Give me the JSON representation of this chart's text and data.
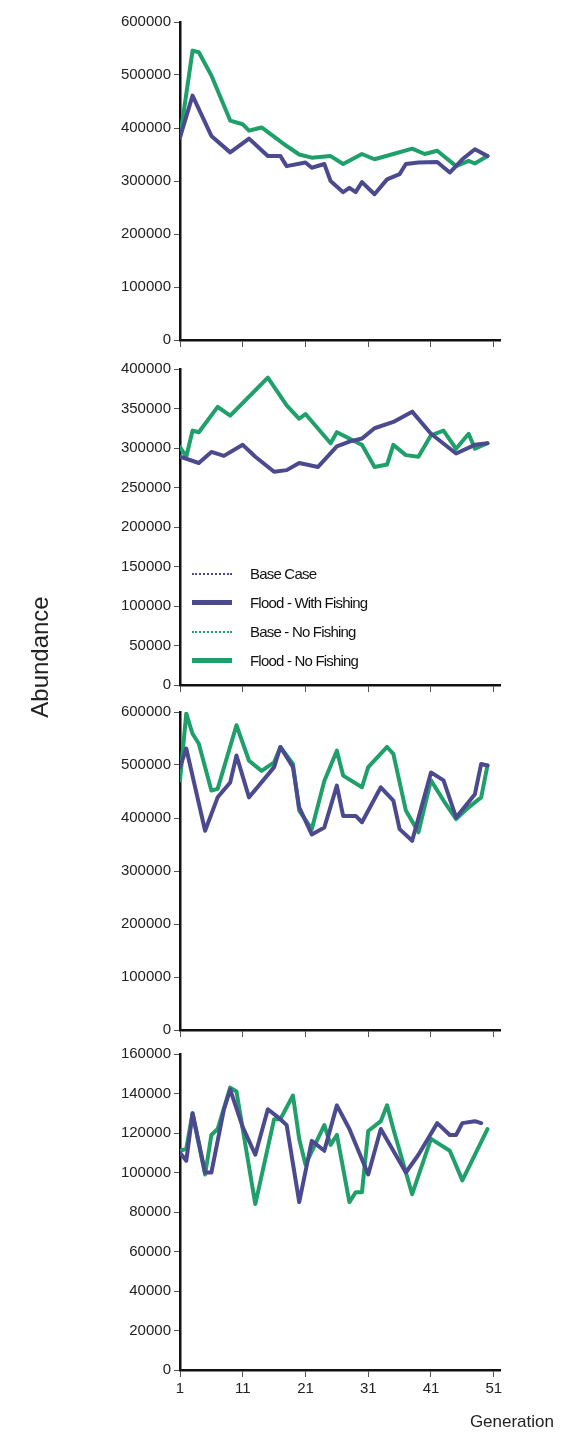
{
  "chart_data": [
    {
      "type": "line",
      "xlim": [
        1,
        52
      ],
      "xticks": [
        1,
        11,
        21,
        31,
        41,
        51
      ],
      "ylim": [
        0,
        600000
      ],
      "yticks": [
        0,
        100000,
        200000,
        300000,
        400000,
        500000,
        600000
      ],
      "tick_labels": "y",
      "marker": "none",
      "grid": false,
      "legend": false,
      "series": [
        {
          "color": "#4b4a8e",
          "x": [
            1,
            3,
            6,
            9,
            12,
            15,
            17,
            18,
            21,
            22,
            24,
            25,
            27,
            28,
            29,
            30,
            32,
            34,
            36,
            37,
            39,
            42,
            44,
            46,
            48,
            50
          ],
          "values": [
            382000,
            461000,
            385000,
            354000,
            380000,
            347000,
            347000,
            328000,
            335000,
            325000,
            332000,
            300000,
            279000,
            287000,
            279000,
            298000,
            275000,
            303000,
            313000,
            332000,
            335000,
            336000,
            316000,
            341000,
            360000,
            347000
          ]
        },
        {
          "color": "#1fa06a",
          "x": [
            1,
            3,
            4,
            6,
            9,
            11,
            12,
            14,
            18,
            20,
            22,
            25,
            27,
            30,
            32,
            35,
            38,
            40,
            42,
            45,
            47,
            48,
            50
          ],
          "values": [
            382000,
            546000,
            543000,
            499000,
            414000,
            407000,
            395000,
            401000,
            366000,
            350000,
            344000,
            347000,
            332000,
            351000,
            341000,
            351000,
            361000,
            351000,
            357000,
            328000,
            338000,
            333000,
            347000
          ]
        }
      ]
    },
    {
      "type": "line",
      "ylabel": "Abundance",
      "xlim": [
        1,
        52
      ],
      "xticks": [
        1,
        11,
        21,
        31,
        41,
        51
      ],
      "ylim": [
        0,
        400000
      ],
      "yticks": [
        0,
        50000,
        100000,
        150000,
        200000,
        250000,
        300000,
        350000,
        400000
      ],
      "tick_labels": "y",
      "marker": "none",
      "grid": false,
      "legend": "bottom left",
      "series": [
        {
          "name": "Base Case",
          "color": "#4b4a8e",
          "line_style": "dotted"
        },
        {
          "name": "Flood - With Fishing",
          "color": "#4b4a8e",
          "line_style": "solid",
          "x": [
            1,
            4,
            6,
            8,
            11,
            13,
            16,
            18,
            20,
            23,
            26,
            28,
            30,
            32,
            35,
            38,
            41,
            45,
            48,
            50
          ],
          "values": [
            289000,
            281000,
            295000,
            290000,
            304000,
            289000,
            270000,
            272000,
            281000,
            276000,
            302000,
            308000,
            312000,
            325000,
            333000,
            346000,
            318000,
            293000,
            304000,
            306000
          ]
        },
        {
          "name": "Base - No Fishing",
          "color": "#1fa06a",
          "line_style": "dotted"
        },
        {
          "name": "Flood - No Fishing",
          "color": "#1fa06a",
          "line_style": "solid",
          "x": [
            1,
            2,
            3,
            4,
            7,
            9,
            15,
            18,
            20,
            21,
            25,
            26,
            30,
            32,
            34,
            35,
            37,
            39,
            41,
            43,
            45,
            47,
            48,
            50
          ],
          "values": [
            301000,
            289000,
            322000,
            320000,
            352000,
            341000,
            389000,
            354000,
            337000,
            343000,
            306000,
            320000,
            304000,
            276000,
            279000,
            304000,
            291000,
            289000,
            316000,
            322000,
            299000,
            318000,
            299000,
            306000
          ]
        }
      ]
    },
    {
      "type": "line",
      "xlim": [
        1,
        52
      ],
      "xticks": [
        1,
        11,
        21,
        31,
        41,
        51
      ],
      "ylim": [
        0,
        600000
      ],
      "yticks": [
        0,
        100000,
        200000,
        300000,
        400000,
        500000,
        600000
      ],
      "tick_labels": "y",
      "marker": "none",
      "grid": false,
      "legend": false,
      "series": [
        {
          "color": "#4b4a8e",
          "x": [
            1,
            2,
            5,
            7,
            9,
            10,
            12,
            16,
            17,
            19,
            20,
            22,
            24,
            26,
            27,
            29,
            30,
            33,
            35,
            36,
            38,
            41,
            43,
            45,
            48,
            49,
            50
          ],
          "values": [
            496000,
            531000,
            376000,
            439000,
            467000,
            518000,
            439000,
            496000,
            534000,
            496000,
            420000,
            369000,
            382000,
            461000,
            404000,
            404000,
            392000,
            458000,
            433000,
            379000,
            357000,
            486000,
            471000,
            401000,
            445000,
            502000,
            499000
          ]
        },
        {
          "color": "#1fa06a",
          "x": [
            1,
            2,
            3,
            4,
            6,
            7,
            10,
            12,
            14,
            16,
            17,
            19,
            20,
            22,
            24,
            26,
            27,
            30,
            31,
            34,
            35,
            37,
            39,
            41,
            43,
            45,
            47,
            49,
            50
          ],
          "values": [
            471000,
            597000,
            559000,
            540000,
            452000,
            455000,
            575000,
            508000,
            489000,
            505000,
            534000,
            502000,
            414000,
            379000,
            470000,
            527000,
            480000,
            458000,
            496000,
            534000,
            521000,
            414000,
            373000,
            471000,
            433000,
            398000,
            420000,
            439000,
            499000
          ]
        }
      ]
    },
    {
      "type": "line",
      "xlabel": "Generation",
      "xlim": [
        1,
        52
      ],
      "xticks": [
        1,
        11,
        21,
        31,
        41,
        51
      ],
      "ylim": [
        0,
        160000
      ],
      "yticks": [
        0,
        20000,
        40000,
        60000,
        80000,
        100000,
        120000,
        140000,
        160000
      ],
      "marker": "none",
      "grid": false,
      "legend": false,
      "series": [
        {
          "color": "#4b4a8e",
          "x": [
            1,
            2,
            3,
            5,
            6,
            8,
            9,
            11,
            13,
            15,
            17,
            18,
            20,
            22,
            24,
            26,
            28,
            31,
            33,
            37,
            39,
            42,
            44,
            45,
            46,
            48,
            49
          ],
          "values": [
            110000,
            106000,
            130000,
            100000,
            100000,
            132000,
            142000,
            123000,
            109000,
            132000,
            127000,
            124000,
            85000,
            116000,
            111000,
            134000,
            122000,
            99000,
            122000,
            100000,
            109000,
            125000,
            119000,
            119000,
            125000,
            126000,
            125000
          ]
        },
        {
          "color": "#1fa06a",
          "x": [
            1,
            2,
            3,
            5,
            6,
            7,
            9,
            10,
            13,
            16,
            17,
            19,
            20,
            21,
            24,
            25,
            26,
            28,
            29,
            30,
            31,
            33,
            34,
            35,
            38,
            41,
            44,
            46,
            50
          ],
          "values": [
            111000,
            112000,
            130000,
            99000,
            119000,
            122000,
            143000,
            141000,
            84000,
            127000,
            127000,
            139000,
            117000,
            104000,
            124000,
            114000,
            119000,
            85000,
            90000,
            90000,
            121000,
            126000,
            134000,
            122000,
            89000,
            117000,
            111000,
            96000,
            122000
          ]
        }
      ]
    }
  ]
}
